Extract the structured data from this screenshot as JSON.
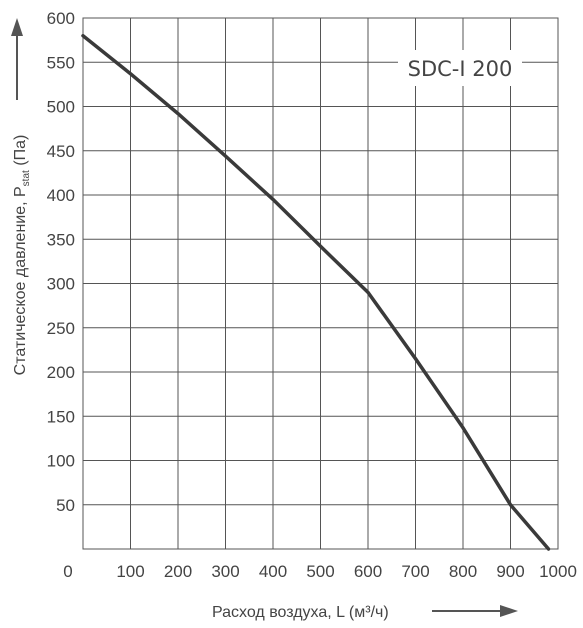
{
  "chart_data": {
    "type": "line",
    "label": "SDC-I 200",
    "xlabel": "Расход воздуха, L (м³/ч)",
    "ylabel_main": "Статическое давление, P",
    "ylabel_sub": "stat",
    "ylabel_unit": " (Па)",
    "xlim": [
      0,
      1000
    ],
    "ylim": [
      0,
      600
    ],
    "x_ticks": [
      0,
      100,
      200,
      300,
      400,
      500,
      600,
      700,
      800,
      900,
      1000
    ],
    "y_ticks": [
      50,
      100,
      150,
      200,
      250,
      300,
      350,
      400,
      450,
      500,
      550,
      600
    ],
    "grid": true,
    "points": [
      {
        "x": 0,
        "y": 580
      },
      {
        "x": 100,
        "y": 537
      },
      {
        "x": 200,
        "y": 492
      },
      {
        "x": 300,
        "y": 444
      },
      {
        "x": 400,
        "y": 395
      },
      {
        "x": 500,
        "y": 342
      },
      {
        "x": 600,
        "y": 290
      },
      {
        "x": 700,
        "y": 215
      },
      {
        "x": 800,
        "y": 137
      },
      {
        "x": 900,
        "y": 50
      },
      {
        "x": 980,
        "y": 0
      }
    ],
    "colors": {
      "curve": "#3a3a3a",
      "grid": "#555555",
      "text": "#444444",
      "arrow": "#555555"
    }
  }
}
